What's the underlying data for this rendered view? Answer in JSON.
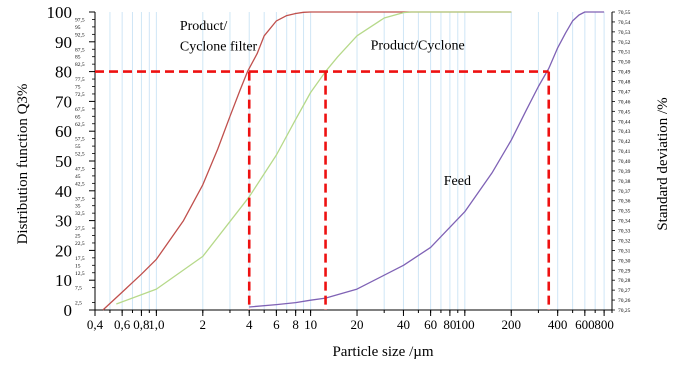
{
  "chart_data": {
    "type": "line",
    "xlabel": "Particle size /µm",
    "ylabel_left": "Distribution function Q3%",
    "ylabel_right": "Standard deviation  /%",
    "x_scale": "log",
    "xlim": [
      0.4,
      900
    ],
    "ylim_left": [
      0,
      100
    ],
    "ylim_right": [
      70.25,
      70.55
    ],
    "grid": "vertical",
    "x_tick_labels": [
      {
        "v": 0.4,
        "t": "0,4"
      },
      {
        "v": 0.6,
        "t": "0,6"
      },
      {
        "v": 0.8,
        "t": "0,8"
      },
      {
        "v": 1.0,
        "t": "1,0"
      },
      {
        "v": 2,
        "t": "2"
      },
      {
        "v": 4,
        "t": "4"
      },
      {
        "v": 6,
        "t": "6"
      },
      {
        "v": 8,
        "t": "8"
      },
      {
        "v": 10,
        "t": "10"
      },
      {
        "v": 20,
        "t": "20"
      },
      {
        "v": 40,
        "t": "40"
      },
      {
        "v": 60,
        "t": "60"
      },
      {
        "v": 80,
        "t": "80"
      },
      {
        "v": 100,
        "t": "100"
      },
      {
        "v": 200,
        "t": "200"
      },
      {
        "v": 400,
        "t": "400"
      },
      {
        "v": 600,
        "t": "600"
      },
      {
        "v": 800,
        "t": "800"
      }
    ],
    "y_major_labels": [
      "0",
      "10",
      "20",
      "30",
      "40",
      "50",
      "60",
      "70",
      "80",
      "90",
      "100"
    ],
    "y_minor_labels": [
      "2,5",
      "7,5",
      "12,5",
      "15",
      "17,5",
      "22,5",
      "25",
      "27,5",
      "32,5",
      "35",
      "37,5",
      "42,5",
      "45",
      "47,5",
      "52,5",
      "55",
      "57,5",
      "62,5",
      "65",
      "67,5",
      "72,5",
      "75",
      "77,5",
      "82,5",
      "85",
      "87,5",
      "92,5",
      "95",
      "97,5"
    ],
    "y_right_labels": [
      "70,25",
      "70,26",
      "70,27",
      "70,28",
      "70,29",
      "70,30",
      "70,31",
      "70,32",
      "70,33",
      "70,34",
      "70,35",
      "70,36",
      "70,37",
      "70,38",
      "70,39",
      "70,40",
      "70,41",
      "70,42",
      "70,43",
      "70,44",
      "70,45",
      "70,46",
      "70,47",
      "70,48",
      "70,49",
      "70,50",
      "70,51",
      "70,52",
      "70,53",
      "70,54",
      "70,55"
    ],
    "series": [
      {
        "name": "Product/ Cyclone filter",
        "color": "#c0504d",
        "x": [
          0.45,
          0.6,
          0.8,
          1.0,
          1.5,
          2.0,
          2.5,
          3.0,
          3.5,
          3.9,
          4.5,
          5.0,
          6.0,
          7.0,
          8.0,
          9.0,
          10.0,
          12.0,
          200
        ],
        "y": [
          0,
          6,
          12,
          17,
          30,
          42,
          54,
          65,
          74,
          80,
          86,
          92,
          97,
          98.8,
          99.5,
          99.9,
          100,
          100,
          100
        ]
      },
      {
        "name": "Product/Cyclone",
        "color": "#b6d98a",
        "x": [
          0.55,
          1.0,
          2.0,
          4.0,
          6.0,
          8.0,
          10.0,
          12.5,
          15.0,
          20.0,
          30.0,
          40.0,
          45.0,
          50.0,
          200
        ],
        "y": [
          2,
          7,
          18,
          38,
          52,
          64,
          73,
          80,
          85,
          92,
          98,
          99.8,
          100,
          100,
          100
        ]
      },
      {
        "name": "Feed",
        "color": "#7f62b5",
        "x": [
          4.0,
          6.0,
          8.0,
          10.0,
          12.5,
          20.0,
          40.0,
          60.0,
          100.0,
          150.0,
          200.0,
          250.0,
          300.0,
          350.0,
          400.0,
          450.0,
          500.0,
          550.0,
          600.0,
          700.0,
          800.0
        ],
        "y": [
          1,
          1.8,
          2.5,
          3.3,
          4,
          7,
          15,
          21,
          33,
          46,
          57,
          67,
          75,
          81,
          88,
          93,
          97,
          99,
          100,
          100,
          100
        ]
      }
    ],
    "guides": {
      "color": "#ee1111",
      "level": 80,
      "x": [
        4.0,
        12.5,
        350.0
      ]
    },
    "annotations": [
      {
        "text": "Product/",
        "x": 1.42,
        "y": 94
      },
      {
        "text": "Cyclone filter",
        "x": 1.42,
        "y": 87
      },
      {
        "text": "Product/Cyclone",
        "x": 24.5,
        "y": 87.5
      },
      {
        "text": "Feed",
        "x": 73,
        "y": 42
      }
    ]
  }
}
